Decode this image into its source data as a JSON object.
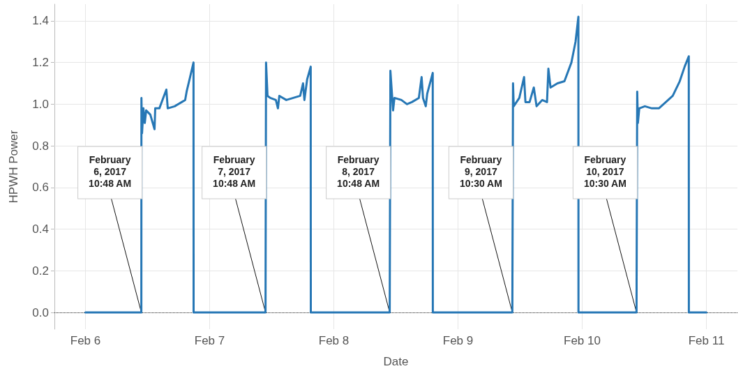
{
  "chart_data": {
    "type": "line",
    "xlabel": "Date",
    "ylabel": "HPWH Power",
    "marker": "none",
    "grid": true,
    "xlim": [
      "2017-02-05T18:00",
      "2017-02-11T06:00"
    ],
    "xticks": [
      {
        "value": "2017-02-06",
        "label": "Feb 6"
      },
      {
        "value": "2017-02-07",
        "label": "Feb 7"
      },
      {
        "value": "2017-02-08",
        "label": "Feb 8"
      },
      {
        "value": "2017-02-09",
        "label": "Feb 9"
      },
      {
        "value": "2017-02-10",
        "label": "Feb 10"
      },
      {
        "value": "2017-02-11",
        "label": "Feb 11"
      }
    ],
    "ylim": [
      -0.08,
      1.48
    ],
    "yticks": [
      {
        "value": 0,
        "label": "0.0"
      },
      {
        "value": 0.2,
        "label": "0.2"
      },
      {
        "value": 0.4,
        "label": "0.4"
      },
      {
        "value": 0.6,
        "label": "0.6"
      },
      {
        "value": 0.8,
        "label": "0.8"
      },
      {
        "value": 1,
        "label": "1.0"
      },
      {
        "value": 1.2,
        "label": "1.2"
      },
      {
        "value": 1.4,
        "label": "1.4"
      }
    ],
    "ref_lines": [
      {
        "axis": "y",
        "value": 0,
        "line_style": "dotted",
        "color": "#333333"
      }
    ],
    "annotations": [
      {
        "text": "February 6, 2017 10:48 AM",
        "x": "2017-02-06T10:48",
        "y": 0
      },
      {
        "text": "February 7, 2017 10:48 AM",
        "x": "2017-02-07T10:48",
        "y": 0
      },
      {
        "text": "February 8, 2017 10:48 AM",
        "x": "2017-02-08T10:48",
        "y": 0
      },
      {
        "text": "February 9, 2017 10:30 AM",
        "x": "2017-02-09T10:30",
        "y": 0
      },
      {
        "text": "February 10, 2017 10:30 AM",
        "x": "2017-02-10T10:30",
        "y": 0
      }
    ],
    "series": [
      {
        "color": "#2677b5",
        "line_style": "solid",
        "x": [
          "2017-02-06T00:00",
          "2017-02-06T10:48",
          "2017-02-06T10:49",
          "2017-02-06T10:56",
          "2017-02-06T11:12",
          "2017-02-06T11:28",
          "2017-02-06T11:44",
          "2017-02-06T12:08",
          "2017-02-06T12:32",
          "2017-02-06T13:21",
          "2017-02-06T13:29",
          "2017-02-06T14:17",
          "2017-02-06T15:38",
          "2017-02-06T15:54",
          "2017-02-06T17:15",
          "2017-02-06T18:36",
          "2017-02-06T19:16",
          "2017-02-06T19:33",
          "2017-02-06T20:13",
          "2017-02-06T20:53",
          "2017-02-06T20:54",
          "2017-02-07T10:48",
          "2017-02-07T10:54",
          "2017-02-07T11:11",
          "2017-02-07T11:43",
          "2017-02-07T12:48",
          "2017-02-07T13:12",
          "2017-02-07T13:28",
          "2017-02-07T14:49",
          "2017-02-07T16:10",
          "2017-02-07T17:30",
          "2017-02-07T18:03",
          "2017-02-07T18:19",
          "2017-02-07T18:51",
          "2017-02-07T19:32",
          "2017-02-07T19:33",
          "2017-02-08T10:48",
          "2017-02-08T10:56",
          "2017-02-08T11:27",
          "2017-02-08T11:43",
          "2017-02-08T13:04",
          "2017-02-08T14:08",
          "2017-02-08T15:05",
          "2017-02-08T16:26",
          "2017-02-08T16:58",
          "2017-02-08T17:14",
          "2017-02-08T17:46",
          "2017-02-08T18:03",
          "2017-02-08T19:07",
          "2017-02-08T19:08",
          "2017-02-09T10:30",
          "2017-02-09T10:38",
          "2017-02-09T10:46",
          "2017-02-09T11:51",
          "2017-02-09T12:46",
          "2017-02-09T13:02",
          "2017-02-09T13:50",
          "2017-02-09T14:39",
          "2017-02-09T15:11",
          "2017-02-09T16:16",
          "2017-02-09T17:12",
          "2017-02-09T17:28",
          "2017-02-09T17:53",
          "2017-02-09T19:13",
          "2017-02-09T20:34",
          "2017-02-09T21:55",
          "2017-02-09T22:43",
          "2017-02-09T23:16",
          "2017-02-09T23:17",
          "2017-02-10T10:30",
          "2017-02-10T10:38",
          "2017-02-10T10:46",
          "2017-02-10T11:02",
          "2017-02-10T12:07",
          "2017-02-10T13:28",
          "2017-02-10T14:49",
          "2017-02-10T16:10",
          "2017-02-10T17:30",
          "2017-02-10T18:51",
          "2017-02-10T19:48",
          "2017-02-10T20:36",
          "2017-02-10T20:37",
          "2017-02-11T00:00"
        ],
        "values": [
          0,
          0,
          1.03,
          0.86,
          0.98,
          0.91,
          0.97,
          0.96,
          0.95,
          0.88,
          0.98,
          0.98,
          1.07,
          0.98,
          0.99,
          1.01,
          1.02,
          1.06,
          1.13,
          1.2,
          0,
          0,
          1.2,
          1.04,
          1.03,
          1.02,
          0.98,
          1.04,
          1.02,
          1.03,
          1.04,
          1.1,
          1.02,
          1.12,
          1.18,
          0,
          0,
          1.16,
          0.97,
          1.03,
          1.02,
          1.0,
          1.01,
          1.03,
          1.13,
          1.03,
          0.99,
          1.05,
          1.15,
          0,
          0,
          1.1,
          0.99,
          1.03,
          1.13,
          1.01,
          1.01,
          1.08,
          0.99,
          1.02,
          1.01,
          1.17,
          1.08,
          1.1,
          1.11,
          1.2,
          1.3,
          1.42,
          0,
          0,
          1.06,
          0.91,
          0.98,
          0.99,
          0.98,
          0.98,
          1.01,
          1.04,
          1.11,
          1.18,
          1.23,
          0,
          0
        ]
      }
    ]
  }
}
